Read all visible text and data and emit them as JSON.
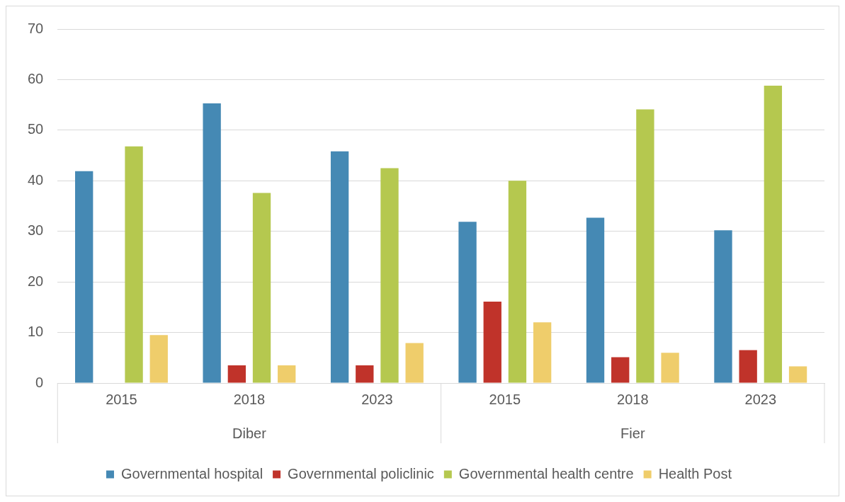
{
  "chart_data": {
    "type": "bar",
    "categories": [
      "2015",
      "2018",
      "2023",
      "2015",
      "2018",
      "2023"
    ],
    "annotations": [
      "Diber",
      "Fier"
    ],
    "series": [
      {
        "name": "Governmental hospital",
        "color": "#4589b4",
        "values": [
          41.9,
          55.3,
          45.8,
          31.9,
          32.7,
          30.2
        ]
      },
      {
        "name": "Governmental policlinic",
        "color": "#c0332a",
        "values": [
          0,
          3.5,
          3.5,
          16.1,
          5.1,
          6.5
        ]
      },
      {
        "name": "Governmental health centre",
        "color": "#b5c84f",
        "values": [
          46.8,
          37.6,
          42.5,
          40.0,
          54.1,
          58.8
        ]
      },
      {
        "name": "Health Post",
        "color": "#efcd6b",
        "values": [
          9.5,
          3.5,
          7.9,
          12.0,
          6.0,
          3.3
        ]
      }
    ],
    "ylim": [
      0,
      70
    ],
    "yticks": [
      0,
      10,
      20,
      30,
      40,
      50,
      60,
      70
    ],
    "grid": "y",
    "legend": "bottom"
  }
}
